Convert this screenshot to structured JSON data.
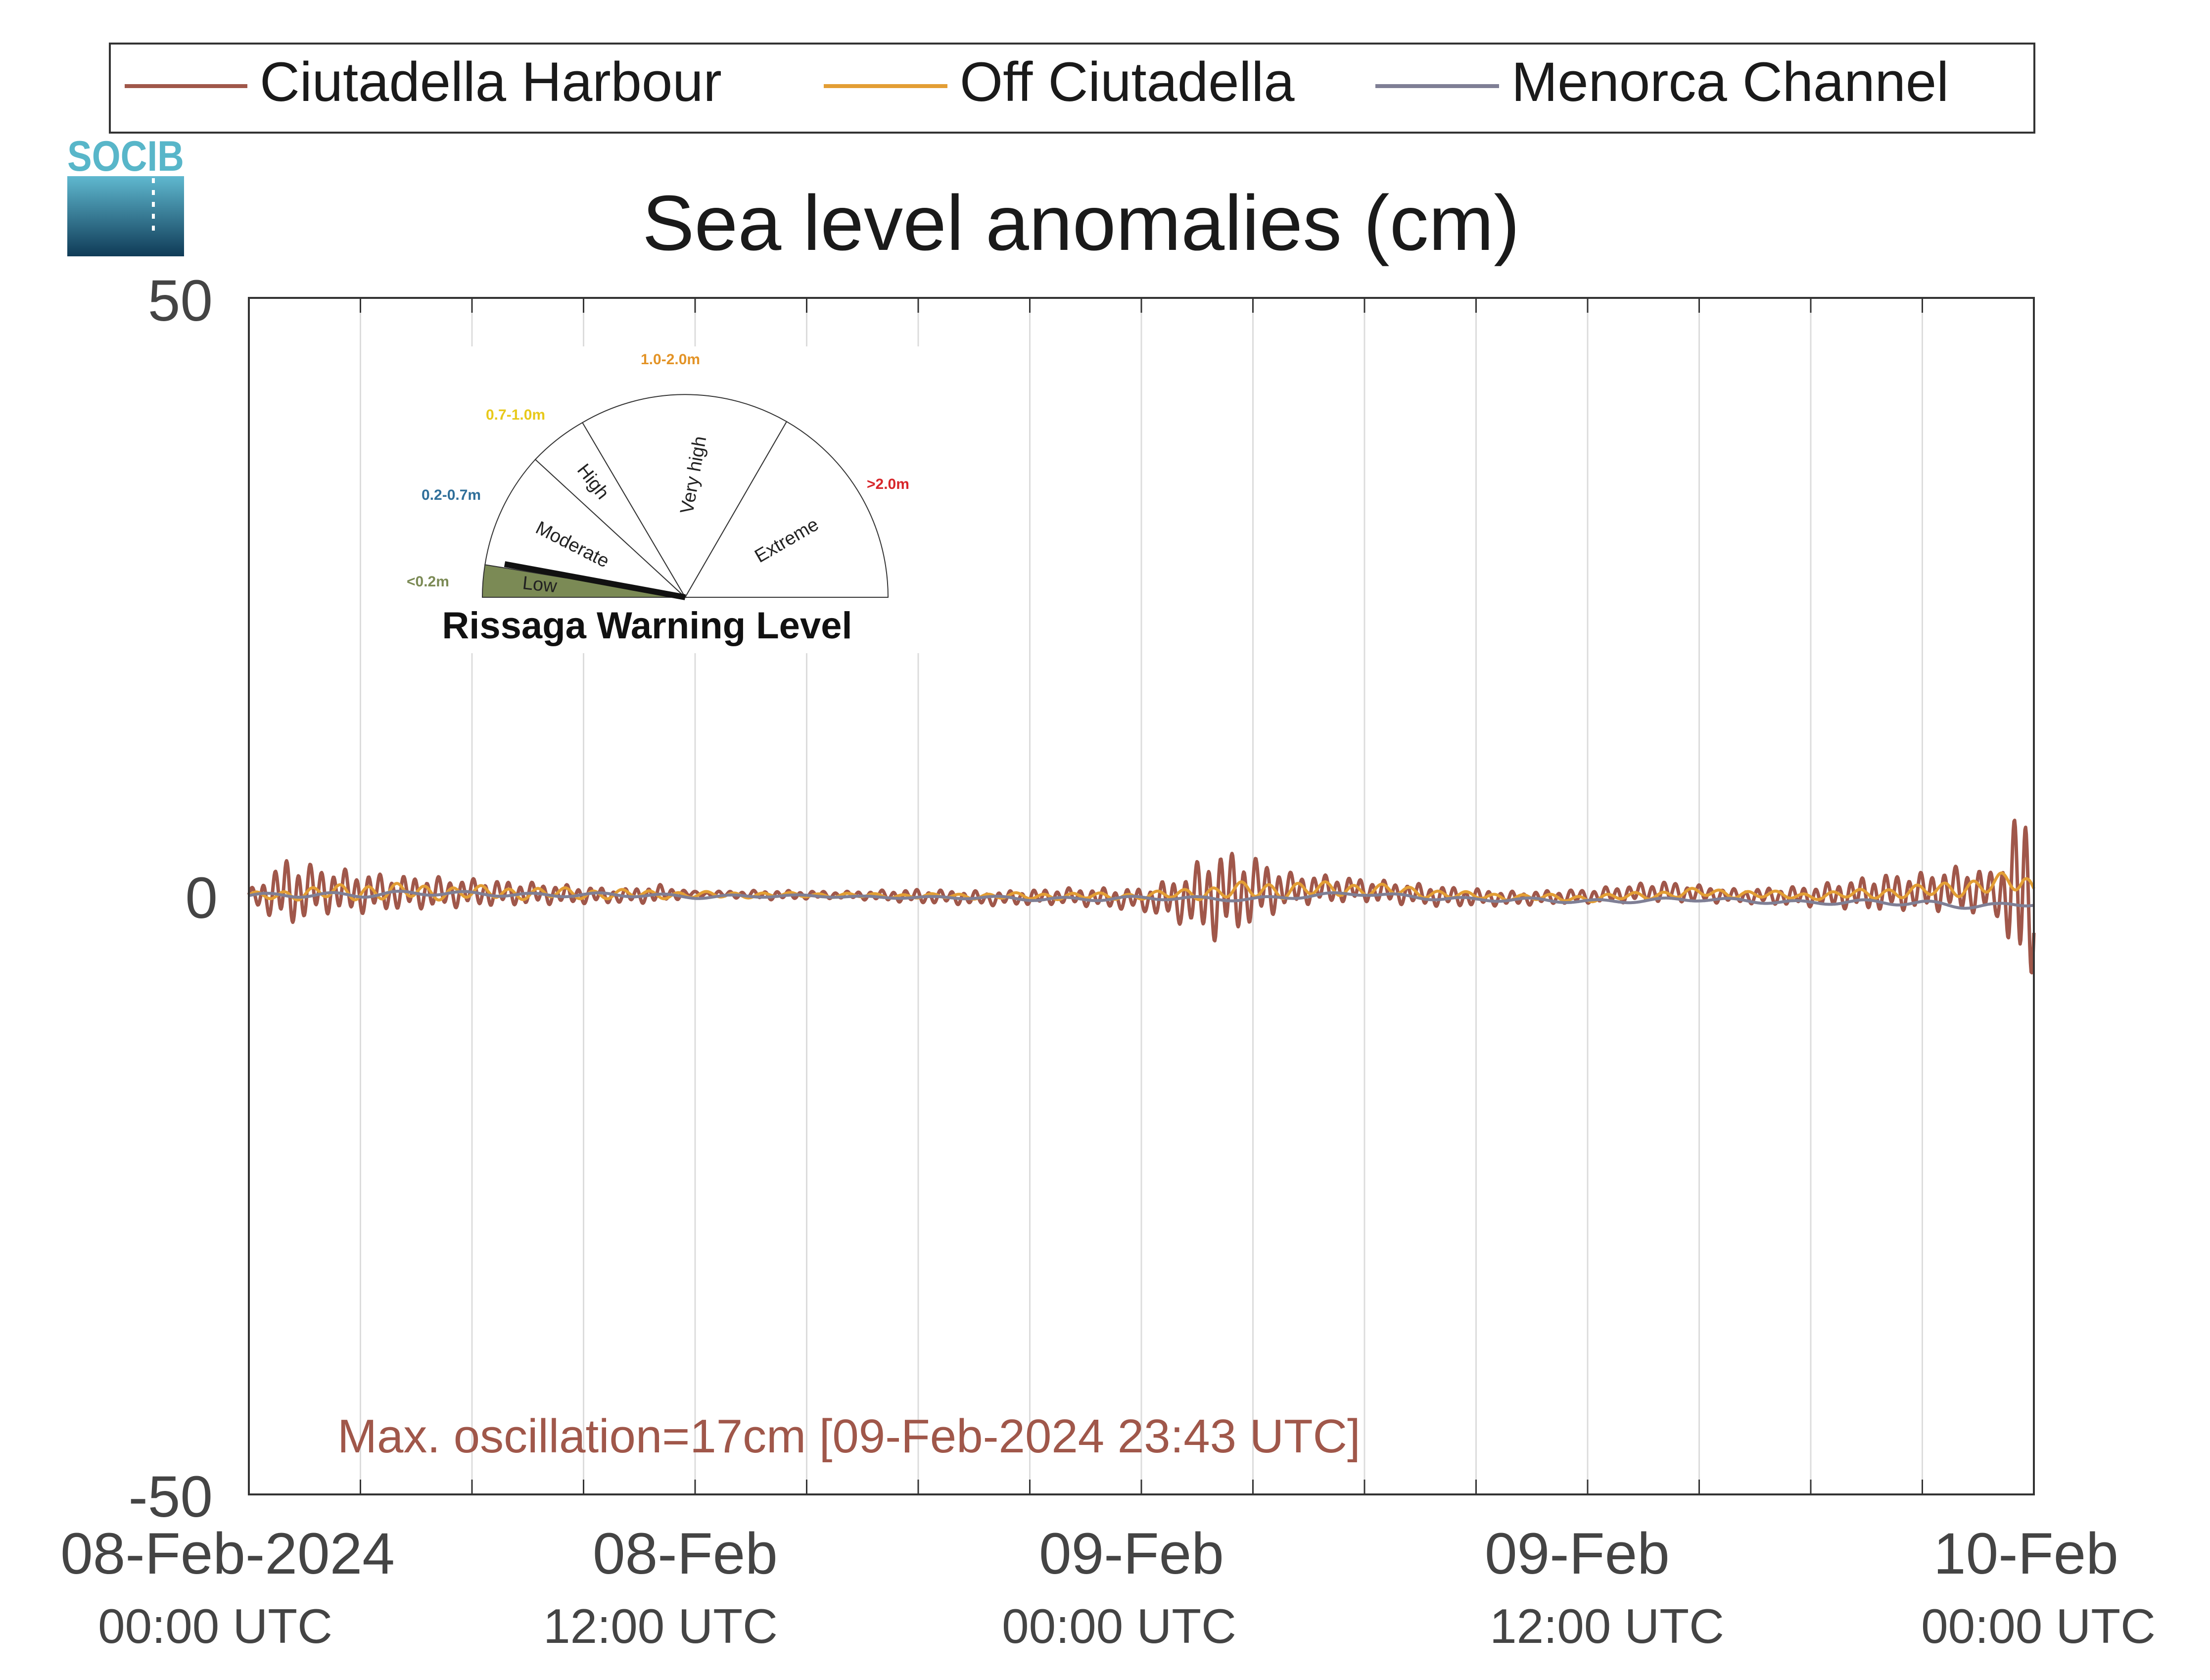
{
  "logo": {
    "text": "SOCIB"
  },
  "legend": {
    "items": [
      {
        "label": "Ciutadella Harbour",
        "color": "#a0574a"
      },
      {
        "label": "Off Ciutadella",
        "color": "#e39e34"
      },
      {
        "label": "Menorca Channel",
        "color": "#7f7f95"
      }
    ]
  },
  "warning_gauge": {
    "title": "Rissaga Warning Level",
    "levels": [
      {
        "name": "Low",
        "range": "<0.2m",
        "color": "#7b8a55"
      },
      {
        "name": "Moderate",
        "range": "0.2-0.7m",
        "color": "#2f6f9a"
      },
      {
        "name": "High",
        "range": "0.7-1.0m",
        "color": "#e8c91a"
      },
      {
        "name": "Very high",
        "range": "1.0-2.0m",
        "color": "#e39326"
      },
      {
        "name": "Extreme",
        "range": ">2.0m",
        "color": "#d7262a"
      }
    ],
    "active_level": "Low"
  },
  "annotation": {
    "text": "Max. oscillation=17cm [09-Feb-2024 23:43 UTC]",
    "color": "#a0574a"
  },
  "chart_data": {
    "type": "line",
    "title": "Sea level anomalies (cm)",
    "xlabel": "",
    "ylabel": "",
    "ylim": [
      -50,
      50
    ],
    "xlim": [
      "2024-02-08T00:00Z",
      "2024-02-10T00:00Z"
    ],
    "y_ticks": [
      "50",
      "0",
      "-50"
    ],
    "x_ticks": [
      {
        "line1": "08-Feb-2024",
        "line2": "00:00 UTC"
      },
      {
        "line1": "08-Feb",
        "line2": "12:00 UTC"
      },
      {
        "line1": "09-Feb",
        "line2": "00:00 UTC"
      },
      {
        "line1": "09-Feb",
        "line2": "12:00 UTC"
      },
      {
        "line1": "10-Feb",
        "line2": "00:00 UTC"
      }
    ],
    "grid": "vertical lines every 3 hours",
    "legend_position": "top",
    "series": [
      {
        "name": "Ciutadella Harbour",
        "color": "#a0574a",
        "note_envelope": "mean and half-amplitude of high-frequency oscillation, cm",
        "times": [
          "2024-02-08T00:00Z",
          "2024-02-08T01:00Z",
          "2024-02-08T02:00Z",
          "2024-02-08T03:00Z",
          "2024-02-08T04:00Z",
          "2024-02-08T06:00Z",
          "2024-02-08T08:00Z",
          "2024-02-08T10:00Z",
          "2024-02-08T11:00Z",
          "2024-02-08T12:00Z",
          "2024-02-08T14:00Z",
          "2024-02-08T16:00Z",
          "2024-02-08T18:00Z",
          "2024-02-08T20:00Z",
          "2024-02-08T22:00Z",
          "2024-02-09T00:00Z",
          "2024-02-09T01:00Z",
          "2024-02-09T02:00Z",
          "2024-02-09T03:00Z",
          "2024-02-09T04:00Z",
          "2024-02-09T05:00Z",
          "2024-02-09T06:00Z",
          "2024-02-09T08:00Z",
          "2024-02-09T10:00Z",
          "2024-02-09T12:00Z",
          "2024-02-09T14:00Z",
          "2024-02-09T16:00Z",
          "2024-02-09T18:00Z",
          "2024-02-09T20:00Z",
          "2024-02-09T21:00Z",
          "2024-02-09T22:00Z",
          "2024-02-09T23:00Z",
          "2024-02-09T23:43Z",
          "2024-02-10T00:00Z"
        ],
        "mean": [
          0.0,
          0.3,
          0.5,
          0.3,
          0.3,
          0.3,
          0.2,
          0.0,
          0.2,
          0.2,
          0.1,
          0.1,
          0.0,
          -0.2,
          0.0,
          -0.3,
          -0.3,
          0.1,
          0.5,
          0.6,
          0.6,
          0.5,
          0.0,
          -0.2,
          0.0,
          0.4,
          0.0,
          0.0,
          0.3,
          0.4,
          0.6,
          0.2,
          0.3,
          0.0
        ],
        "amplitude": [
          0.5,
          3.0,
          2.0,
          1.8,
          1.5,
          1.2,
          0.9,
          0.6,
          0.8,
          0.2,
          0.4,
          0.3,
          0.6,
          0.6,
          0.7,
          1.0,
          2.0,
          4.0,
          3.0,
          1.4,
          1.2,
          1.0,
          0.9,
          0.6,
          0.6,
          0.9,
          0.6,
          0.9,
          1.6,
          1.6,
          2.0,
          2.0,
          8.5,
          6.0
        ]
      },
      {
        "name": "Off Ciutadella",
        "color": "#e39e34",
        "times": [
          "2024-02-08T00:00Z",
          "2024-02-08T03:00Z",
          "2024-02-08T06:00Z",
          "2024-02-08T09:00Z",
          "2024-02-08T12:00Z",
          "2024-02-08T15:00Z",
          "2024-02-08T18:00Z",
          "2024-02-08T21:00Z",
          "2024-02-09T00:00Z",
          "2024-02-09T03:00Z",
          "2024-02-09T06:00Z",
          "2024-02-09T09:00Z",
          "2024-02-09T12:00Z",
          "2024-02-09T15:00Z",
          "2024-02-09T18:00Z",
          "2024-02-09T21:00Z",
          "2024-02-09T23:43Z",
          "2024-02-10T00:00Z"
        ],
        "mean": [
          0.0,
          0.4,
          0.3,
          0.2,
          0.1,
          0.1,
          0.0,
          0.0,
          0.0,
          0.5,
          0.6,
          0.0,
          -0.2,
          0.3,
          0.0,
          0.4,
          1.2,
          0.5
        ],
        "amplitude": [
          0.3,
          0.8,
          0.6,
          0.5,
          0.3,
          0.2,
          0.2,
          0.3,
          0.3,
          0.8,
          0.6,
          0.3,
          0.3,
          0.4,
          0.3,
          0.6,
          1.0,
          0.8
        ]
      },
      {
        "name": "Menorca Channel",
        "color": "#7f7f95",
        "times": [
          "2024-02-08T00:00Z",
          "2024-02-08T03:00Z",
          "2024-02-08T06:00Z",
          "2024-02-08T09:00Z",
          "2024-02-08T12:00Z",
          "2024-02-08T15:00Z",
          "2024-02-08T18:00Z",
          "2024-02-08T21:00Z",
          "2024-02-09T00:00Z",
          "2024-02-09T03:00Z",
          "2024-02-09T06:00Z",
          "2024-02-09T09:00Z",
          "2024-02-09T12:00Z",
          "2024-02-09T15:00Z",
          "2024-02-09T18:00Z",
          "2024-02-09T21:00Z",
          "2024-02-09T23:00Z",
          "2024-02-10T00:00Z"
        ],
        "mean": [
          0.0,
          0.2,
          0.2,
          0.1,
          0.0,
          0.0,
          -0.1,
          -0.2,
          -0.2,
          -0.2,
          0.2,
          -0.3,
          -0.4,
          -0.3,
          -0.5,
          -0.6,
          -0.8,
          -0.6
        ],
        "amplitude": [
          0.2,
          0.3,
          0.2,
          0.2,
          0.2,
          0.1,
          0.1,
          0.2,
          0.2,
          0.2,
          0.2,
          0.2,
          0.2,
          0.2,
          0.2,
          0.3,
          0.3,
          0.3
        ]
      }
    ]
  }
}
